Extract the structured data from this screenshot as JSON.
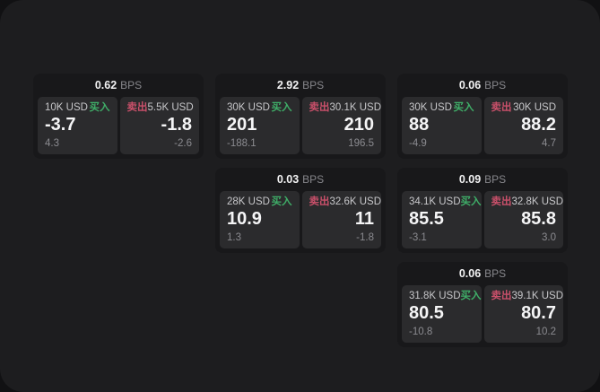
{
  "labels": {
    "buy": "买入",
    "sell": "卖出",
    "bps_unit": "BPS"
  },
  "colors": {
    "buy_green": "#3fae68",
    "sell_red": "#c9506a",
    "card_bg": "#18181a",
    "panel_bg": "#2b2b2d",
    "window_bg": "#1d1d1f"
  },
  "cards": [
    {
      "bps": "0.62",
      "buy": {
        "notional": "10K USD",
        "value": "-3.7",
        "sub": "4.3"
      },
      "sell": {
        "notional": "5.5K USD",
        "value": "-1.8",
        "sub": "-2.6"
      }
    },
    {
      "bps": "2.92",
      "buy": {
        "notional": "30K USD",
        "value": "201",
        "sub": "-188.1"
      },
      "sell": {
        "notional": "30.1K USD",
        "value": "210",
        "sub": "196.5"
      }
    },
    {
      "bps": "0.06",
      "buy": {
        "notional": "30K USD",
        "value": "88",
        "sub": "-4.9"
      },
      "sell": {
        "notional": "30K USD",
        "value": "88.2",
        "sub": "4.7"
      }
    },
    {
      "bps": "0.03",
      "buy": {
        "notional": "28K USD",
        "value": "10.9",
        "sub": "1.3"
      },
      "sell": {
        "notional": "32.6K USD",
        "value": "11",
        "sub": "-1.8"
      }
    },
    {
      "bps": "0.09",
      "buy": {
        "notional": "34.1K USD",
        "value": "85.5",
        "sub": "-3.1"
      },
      "sell": {
        "notional": "32.8K USD",
        "value": "85.8",
        "sub": "3.0"
      }
    },
    {
      "bps": "0.06",
      "buy": {
        "notional": "31.8K USD",
        "value": "80.5",
        "sub": "-10.8"
      },
      "sell": {
        "notional": "39.1K USD",
        "value": "80.7",
        "sub": "10.2"
      }
    }
  ]
}
